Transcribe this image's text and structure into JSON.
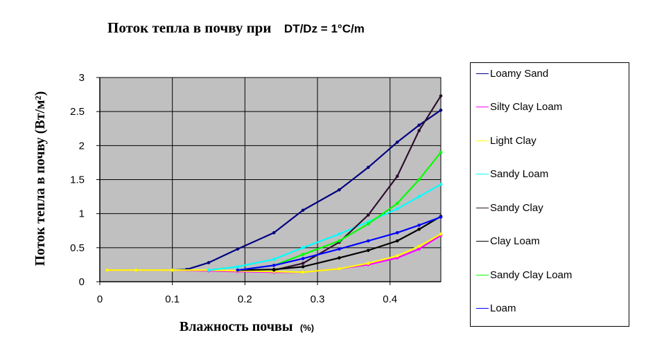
{
  "chart_data": {
    "type": "line",
    "title": "Поток тепла в почву при",
    "title_condition": "DT/Dz = 1°C/m",
    "xlabel": "Влажность почвы",
    "xlabel_unit": "(%)",
    "ylabel": "Поток тепла в почву (Вт/м²)",
    "xlim": [
      0,
      0.47
    ],
    "ylim": [
      0,
      3
    ],
    "x_ticks": [
      0,
      0.1,
      0.2,
      0.3,
      0.4
    ],
    "x_tick_labels": [
      "0",
      "0.1",
      "0.2",
      "0.3",
      "0.4"
    ],
    "y_ticks": [
      0,
      0.5,
      1,
      1.5,
      2,
      2.5,
      3
    ],
    "y_tick_labels": [
      "0",
      "0.5",
      "1",
      "1.5",
      "2",
      "2.5",
      "3"
    ],
    "grid": true,
    "plot_background": "#c0c0c0",
    "legend_position": "right",
    "series": [
      {
        "name": "Loamy Sand",
        "color": "#000080",
        "x": [
          0.1,
          0.12,
          0.15,
          0.19,
          0.24,
          0.28,
          0.33,
          0.37,
          0.41,
          0.44,
          0.47
        ],
        "y": [
          0.17,
          0.18,
          0.28,
          0.48,
          0.72,
          1.05,
          1.35,
          1.68,
          2.05,
          2.3,
          2.52
        ]
      },
      {
        "name": "Silty Clay Loam",
        "color": "#ff00ff",
        "x": [
          0.01,
          0.05,
          0.1,
          0.15,
          0.19,
          0.24,
          0.28,
          0.33,
          0.37,
          0.41,
          0.44,
          0.47
        ],
        "y": [
          0.17,
          0.17,
          0.17,
          0.16,
          0.15,
          0.14,
          0.14,
          0.19,
          0.25,
          0.35,
          0.48,
          0.68
        ]
      },
      {
        "name": "Light Clay",
        "color": "#ffff00",
        "x": [
          0.01,
          0.05,
          0.1,
          0.15,
          0.19,
          0.24,
          0.28,
          0.33,
          0.37,
          0.41,
          0.44,
          0.47
        ],
        "y": [
          0.17,
          0.17,
          0.17,
          0.17,
          0.16,
          0.15,
          0.14,
          0.19,
          0.27,
          0.38,
          0.52,
          0.7
        ]
      },
      {
        "name": "Sandy Loam",
        "color": "#00ffff",
        "x": [
          0.15,
          0.19,
          0.24,
          0.28,
          0.33,
          0.37,
          0.41,
          0.44,
          0.47
        ],
        "y": [
          0.17,
          0.22,
          0.33,
          0.5,
          0.7,
          0.88,
          1.07,
          1.25,
          1.43
        ]
      },
      {
        "name": "Sandy Clay",
        "color": "#2d0d2d",
        "x": [
          0.24,
          0.28,
          0.33,
          0.37,
          0.41,
          0.44,
          0.47
        ],
        "y": [
          0.17,
          0.27,
          0.58,
          0.98,
          1.55,
          2.22,
          2.73
        ]
      },
      {
        "name": "Clay Loam",
        "color": "#000000",
        "x": [
          0.19,
          0.24,
          0.28,
          0.33,
          0.37,
          0.41,
          0.44,
          0.47
        ],
        "y": [
          0.17,
          0.18,
          0.22,
          0.35,
          0.46,
          0.6,
          0.77,
          0.96
        ]
      },
      {
        "name": "Sandy Clay Loam",
        "color": "#00ff00",
        "x": [
          0.19,
          0.24,
          0.28,
          0.33,
          0.37,
          0.41,
          0.44,
          0.47
        ],
        "y": [
          0.17,
          0.24,
          0.4,
          0.6,
          0.85,
          1.15,
          1.5,
          1.9
        ]
      },
      {
        "name": "Loam",
        "color": "#0000ff",
        "x": [
          0.19,
          0.24,
          0.28,
          0.33,
          0.37,
          0.41,
          0.44,
          0.47
        ],
        "y": [
          0.17,
          0.24,
          0.34,
          0.48,
          0.6,
          0.72,
          0.83,
          0.95
        ]
      }
    ]
  }
}
